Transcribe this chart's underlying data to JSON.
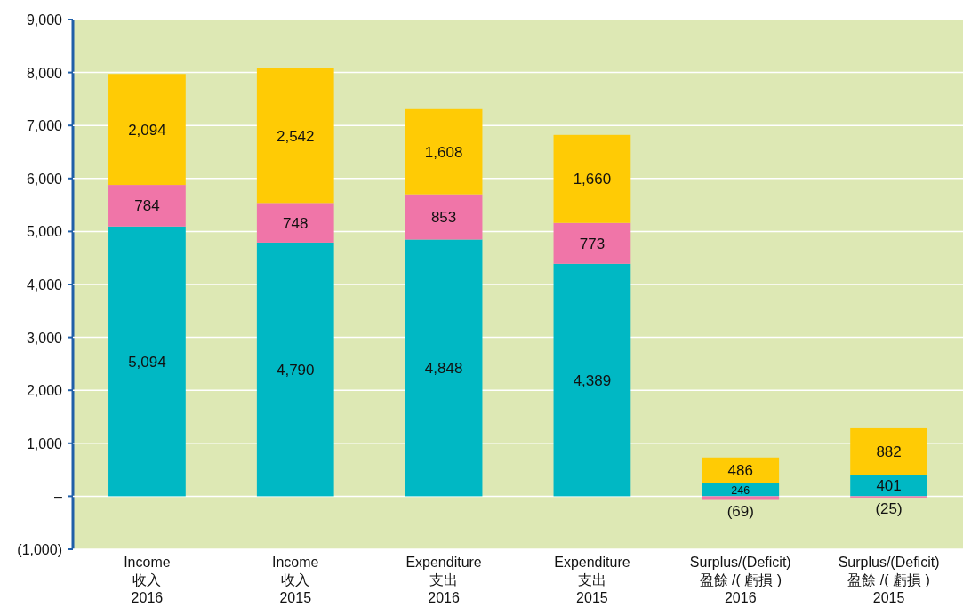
{
  "chart_data": {
    "type": "bar",
    "stacked": true,
    "grid": "y",
    "categories": [
      "Income\n收入\n2016",
      "Income\n收入\n2015",
      "Expenditure\n支出\n2016",
      "Expenditure\n支出\n2015",
      "Surplus/(Deficit)\n盈餘 /( 虧損 )\n2016",
      "Surplus/(Deficit)\n盈餘 /( 虧損 )\n2015"
    ],
    "ylim": [
      -1000,
      9000
    ],
    "yticks": [
      {
        "value": -1000,
        "label": "(1,000)"
      },
      {
        "value": 0,
        "label": "–"
      },
      {
        "value": 1000,
        "label": "1,000"
      },
      {
        "value": 2000,
        "label": "2,000"
      },
      {
        "value": 3000,
        "label": "3,000"
      },
      {
        "value": 4000,
        "label": "4,000"
      },
      {
        "value": 5000,
        "label": "5,000"
      },
      {
        "value": 6000,
        "label": "6,000"
      },
      {
        "value": 7000,
        "label": "7,000"
      },
      {
        "value": 8000,
        "label": "8,000"
      },
      {
        "value": 9000,
        "label": "9,000"
      }
    ],
    "series": [
      {
        "color": "#00b8c4",
        "values": [
          5094,
          4790,
          4848,
          4389,
          246,
          401
        ],
        "value_labels": [
          "5,094",
          "4,790",
          "4,848",
          "4,389",
          "246",
          "401"
        ]
      },
      {
        "color": "#f075a8",
        "values": [
          784,
          748,
          853,
          773,
          -69,
          -25
        ],
        "value_labels": [
          "784",
          "748",
          "853",
          "773",
          "(69)",
          "(25)"
        ]
      },
      {
        "color": "#ffcb05",
        "values": [
          2094,
          2542,
          1608,
          1660,
          486,
          882
        ],
        "value_labels": [
          "2,094",
          "2,542",
          "1,608",
          "1,660",
          "486",
          "882"
        ]
      }
    ]
  }
}
